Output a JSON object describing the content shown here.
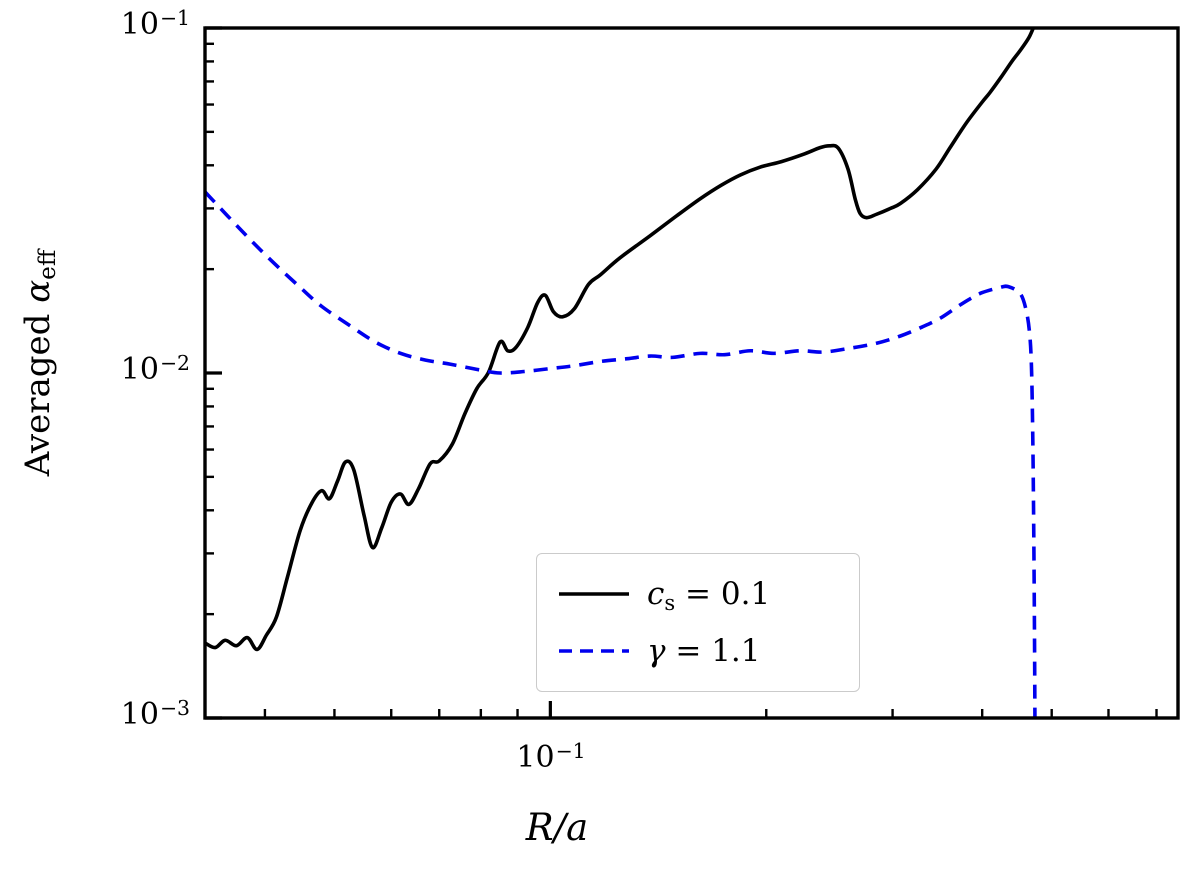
{
  "chart_data": {
    "type": "line",
    "title": "",
    "xlabel": "R/a",
    "ylabel": {
      "prefix": "Averaged ",
      "symbol": "α",
      "subscript": "eff"
    },
    "xscale": "log",
    "yscale": "log",
    "xlim": [
      0.033,
      0.75
    ],
    "ylim": [
      0.001,
      0.1
    ],
    "grid": false,
    "background": "#ffffff",
    "axis_color": "#000000",
    "x_ticks": [
      {
        "base": "10",
        "exp": "−1",
        "value": 0.1
      }
    ],
    "y_ticks": [
      {
        "base": "10",
        "exp": "−1",
        "value": 0.1
      },
      {
        "base": "10",
        "exp": "−2",
        "value": 0.01
      },
      {
        "base": "10",
        "exp": "−3",
        "value": 0.001
      }
    ],
    "legend": {
      "position": "inside lower-center-right",
      "entries": [
        {
          "id": "cs01",
          "symbol": "c",
          "symbol_sub": "s",
          "value": " = 0.1",
          "color": "#000000",
          "linestyle": "solid"
        },
        {
          "id": "gamma11",
          "symbol": "γ",
          "symbol_sub": "",
          "value": " = 1.1",
          "color": "#0000ee",
          "linestyle": "dashed"
        }
      ]
    },
    "series": [
      {
        "id": "cs01",
        "name": "c_s = 0.1",
        "color": "#000000",
        "linestyle": "solid",
        "points": [
          [
            0.033,
            0.00165
          ],
          [
            0.0341,
            0.0016
          ],
          [
            0.0352,
            0.00168
          ],
          [
            0.0365,
            0.00162
          ],
          [
            0.0378,
            0.00171
          ],
          [
            0.039,
            0.00158
          ],
          [
            0.0402,
            0.00174
          ],
          [
            0.0415,
            0.00196
          ],
          [
            0.043,
            0.00256
          ],
          [
            0.0448,
            0.0035
          ],
          [
            0.0465,
            0.0042
          ],
          [
            0.048,
            0.00456
          ],
          [
            0.0492,
            0.00432
          ],
          [
            0.0505,
            0.00486
          ],
          [
            0.0518,
            0.00552
          ],
          [
            0.0532,
            0.00524
          ],
          [
            0.055,
            0.00386
          ],
          [
            0.0565,
            0.00312
          ],
          [
            0.0582,
            0.00356
          ],
          [
            0.06,
            0.00422
          ],
          [
            0.0618,
            0.00446
          ],
          [
            0.0635,
            0.00416
          ],
          [
            0.0655,
            0.00462
          ],
          [
            0.068,
            0.00546
          ],
          [
            0.07,
            0.00556
          ],
          [
            0.073,
            0.00622
          ],
          [
            0.076,
            0.00762
          ],
          [
            0.079,
            0.00902
          ],
          [
            0.082,
            0.01005
          ],
          [
            0.0851,
            0.0123
          ],
          [
            0.0872,
            0.0116
          ],
          [
            0.0895,
            0.01185
          ],
          [
            0.093,
            0.01355
          ],
          [
            0.096,
            0.016
          ],
          [
            0.0984,
            0.0168
          ],
          [
            0.101,
            0.01505
          ],
          [
            0.104,
            0.01455
          ],
          [
            0.108,
            0.01535
          ],
          [
            0.113,
            0.01805
          ],
          [
            0.1174,
            0.01925
          ],
          [
            0.125,
            0.02155
          ],
          [
            0.1378,
            0.025
          ],
          [
            0.15,
            0.02855
          ],
          [
            0.1618,
            0.032
          ],
          [
            0.173,
            0.035
          ],
          [
            0.184,
            0.0375
          ],
          [
            0.196,
            0.0395
          ],
          [
            0.21,
            0.041
          ],
          [
            0.225,
            0.043
          ],
          [
            0.2377,
            0.045
          ],
          [
            0.245,
            0.04555
          ],
          [
            0.252,
            0.04485
          ],
          [
            0.26,
            0.039
          ],
          [
            0.266,
            0.032
          ],
          [
            0.2703,
            0.029
          ],
          [
            0.276,
            0.0282
          ],
          [
            0.285,
            0.02885
          ],
          [
            0.298,
            0.03
          ],
          [
            0.3076,
            0.031
          ],
          [
            0.325,
            0.034
          ],
          [
            0.345,
            0.039
          ],
          [
            0.3608,
            0.045
          ],
          [
            0.38,
            0.053
          ],
          [
            0.4,
            0.061
          ],
          [
            0.4101,
            0.065
          ],
          [
            0.425,
            0.072
          ],
          [
            0.44,
            0.08
          ],
          [
            0.4518,
            0.086
          ],
          [
            0.465,
            0.094
          ],
          [
            0.474,
            0.103
          ]
        ]
      },
      {
        "id": "gamma11",
        "name": "γ = 1.1",
        "color": "#0000ee",
        "linestyle": "dashed",
        "points": [
          [
            0.033,
            0.0335
          ],
          [
            0.0355,
            0.0285
          ],
          [
            0.0382,
            0.0243
          ],
          [
            0.041,
            0.021
          ],
          [
            0.0448,
            0.0177
          ],
          [
            0.048,
            0.0156
          ],
          [
            0.0526,
            0.0137
          ],
          [
            0.057,
            0.0123
          ],
          [
            0.0618,
            0.0114
          ],
          [
            0.067,
            0.0109
          ],
          [
            0.0726,
            0.0106
          ],
          [
            0.0799,
            0.0102
          ],
          [
            0.0851,
            0.01
          ],
          [
            0.092,
            0.0101
          ],
          [
            0.1,
            0.0103
          ],
          [
            0.108,
            0.0105
          ],
          [
            0.1174,
            0.0108
          ],
          [
            0.128,
            0.011
          ],
          [
            0.1378,
            0.0112
          ],
          [
            0.148,
            0.0111
          ],
          [
            0.1618,
            0.0114
          ],
          [
            0.175,
            0.0113
          ],
          [
            0.19,
            0.0116
          ],
          [
            0.205,
            0.0114
          ],
          [
            0.223,
            0.0116
          ],
          [
            0.24,
            0.0115
          ],
          [
            0.2618,
            0.0118
          ],
          [
            0.285,
            0.0122
          ],
          [
            0.3076,
            0.0128
          ],
          [
            0.33,
            0.0136
          ],
          [
            0.3493,
            0.0144
          ],
          [
            0.37,
            0.0156
          ],
          [
            0.3846,
            0.0164
          ],
          [
            0.4,
            0.0171
          ],
          [
            0.4235,
            0.0177
          ],
          [
            0.435,
            0.0178
          ],
          [
            0.4518,
            0.017
          ],
          [
            0.46,
            0.0154
          ],
          [
            0.4655,
            0.0132
          ],
          [
            0.4685,
            0.0105
          ],
          [
            0.4705,
            0.0066
          ],
          [
            0.472,
            0.0035
          ],
          [
            0.4731,
            0.0018
          ],
          [
            0.4738,
            0.001
          ]
        ]
      }
    ]
  }
}
